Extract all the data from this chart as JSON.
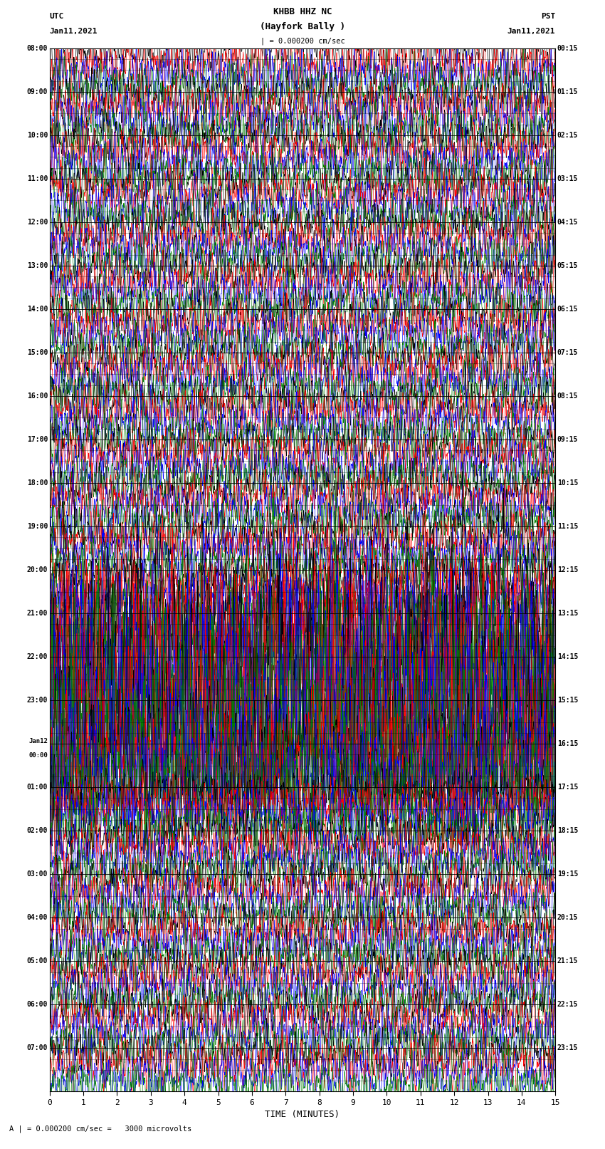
{
  "title_line1": "KHBB HHZ NC",
  "title_line2": "(Hayfork Bally )",
  "scale_label": "| = 0.000200 cm/sec",
  "left_label": "UTC",
  "left_date": "Jan11,2021",
  "right_label": "PST",
  "right_date": "Jan11,2021",
  "scale_text": "A | = 0.000200 cm/sec =   3000 microvolts",
  "xlabel": "TIME (MINUTES)",
  "xticks": [
    0,
    1,
    2,
    3,
    4,
    5,
    6,
    7,
    8,
    9,
    10,
    11,
    12,
    13,
    14,
    15
  ],
  "background_color": "#ffffff",
  "trace_colors": [
    "black",
    "red",
    "blue",
    "green"
  ],
  "n_groups": 24,
  "left_times": [
    "08:00",
    "09:00",
    "10:00",
    "11:00",
    "12:00",
    "13:00",
    "14:00",
    "15:00",
    "16:00",
    "17:00",
    "18:00",
    "19:00",
    "20:00",
    "21:00",
    "22:00",
    "23:00",
    "Jan12\n00:00",
    "01:00",
    "02:00",
    "03:00",
    "04:00",
    "05:00",
    "06:00",
    "07:00"
  ],
  "right_times": [
    "00:15",
    "01:15",
    "02:15",
    "03:15",
    "04:15",
    "05:15",
    "06:15",
    "07:15",
    "08:15",
    "09:15",
    "10:15",
    "11:15",
    "12:15",
    "13:15",
    "14:15",
    "15:15",
    "16:15",
    "17:15",
    "18:15",
    "19:15",
    "20:15",
    "21:15",
    "22:15",
    "23:15"
  ],
  "big_amp_groups": [
    14,
    15
  ],
  "med_amp_groups": [
    13,
    16
  ],
  "base_amp": 0.012,
  "big_amp": 0.055,
  "med_amp": 0.028
}
